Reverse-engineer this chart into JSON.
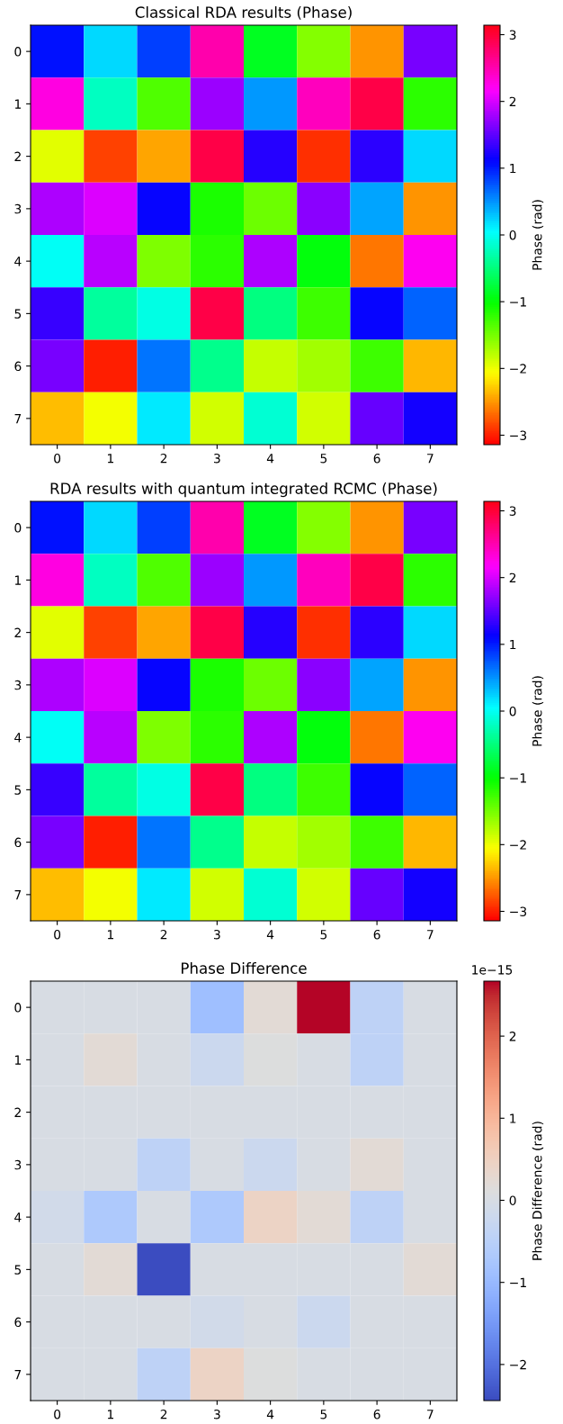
{
  "chart_data": [
    {
      "type": "heatmap",
      "title": "Classical RDA results (Phase)",
      "clabel": "Phase (rad)",
      "categories": [
        "0",
        "1",
        "2",
        "3",
        "4",
        "5",
        "6",
        "7"
      ],
      "y_categories": [
        "0",
        "1",
        "2",
        "3",
        "4",
        "5",
        "6",
        "7"
      ],
      "cells": [
        [
          1.05,
          0.21,
          0.84,
          2.51,
          -0.87,
          -1.57,
          -2.51,
          1.61
        ],
        [
          2.3,
          -0.21,
          -1.33,
          1.75,
          0.49,
          2.44,
          2.93,
          -1.19
        ],
        [
          -1.95,
          -2.86,
          -2.44,
          2.93,
          1.26,
          -2.93,
          1.3,
          0.21
        ],
        [
          1.82,
          2.02,
          1.12,
          -1.12,
          -1.47,
          1.68,
          0.42,
          -2.51
        ],
        [
          0.0,
          1.88,
          -1.54,
          -1.19,
          1.82,
          -0.98,
          -2.65,
          2.23
        ],
        [
          1.33,
          -0.35,
          -0.07,
          2.93,
          -0.49,
          -1.26,
          1.12,
          0.7
        ],
        [
          1.61,
          -3.0,
          0.63,
          -0.42,
          -1.82,
          -1.68,
          -1.26,
          -2.37
        ],
        [
          -2.34,
          -2.02,
          0.14,
          -1.88,
          -0.14,
          -1.88,
          1.54,
          1.19
        ]
      ],
      "clim": [
        -3.1416,
        3.1416
      ],
      "cticks": [
        -3,
        -2,
        -1,
        0,
        1,
        2,
        3
      ],
      "grid": false
    },
    {
      "type": "heatmap",
      "title": "RDA results with quantum integrated RCMC (Phase)",
      "clabel": "Phase (rad)",
      "categories": [
        "0",
        "1",
        "2",
        "3",
        "4",
        "5",
        "6",
        "7"
      ],
      "y_categories": [
        "0",
        "1",
        "2",
        "3",
        "4",
        "5",
        "6",
        "7"
      ],
      "cells": [
        [
          1.05,
          0.21,
          0.84,
          2.51,
          -0.87,
          -1.57,
          -2.51,
          1.61
        ],
        [
          2.3,
          -0.21,
          -1.33,
          1.75,
          0.49,
          2.44,
          2.93,
          -1.19
        ],
        [
          -1.95,
          -2.86,
          -2.44,
          2.93,
          1.26,
          -2.93,
          1.3,
          0.21
        ],
        [
          1.82,
          2.02,
          1.12,
          -1.12,
          -1.47,
          1.68,
          0.42,
          -2.51
        ],
        [
          0.0,
          1.88,
          -1.54,
          -1.19,
          1.82,
          -0.98,
          -2.65,
          2.23
        ],
        [
          1.33,
          -0.35,
          -0.07,
          2.93,
          -0.49,
          -1.26,
          1.12,
          0.7
        ],
        [
          1.61,
          -3.0,
          0.63,
          -0.42,
          -1.82,
          -1.68,
          -1.26,
          -2.37
        ],
        [
          -2.34,
          -2.02,
          0.14,
          -1.88,
          -0.14,
          -1.88,
          1.54,
          1.19
        ]
      ],
      "clim": [
        -3.1416,
        3.1416
      ],
      "cticks": [
        -3,
        -2,
        -1,
        0,
        1,
        2,
        3
      ],
      "grid": false
    },
    {
      "type": "heatmap",
      "title": "Phase Difference",
      "clabel": "Phase Difference (rad)",
      "categories": [
        "0",
        "1",
        "2",
        "3",
        "4",
        "5",
        "6",
        "7"
      ],
      "y_categories": [
        "0",
        "1",
        "2",
        "3",
        "4",
        "5",
        "6",
        "7"
      ],
      "cells": [
        [
          0,
          0,
          0,
          -0.89,
          0.22,
          2.66,
          -0.44,
          0
        ],
        [
          0,
          0.22,
          0,
          -0.22,
          0.11,
          0,
          -0.44,
          0
        ],
        [
          0,
          0,
          0,
          0,
          0,
          0,
          0,
          0
        ],
        [
          0,
          0,
          -0.44,
          0,
          -0.22,
          0,
          0.22,
          0
        ],
        [
          -0.11,
          -0.67,
          0,
          -0.67,
          0.44,
          0.22,
          -0.44,
          0
        ],
        [
          0,
          0.22,
          -2.44,
          0,
          0,
          0,
          0,
          0.22
        ],
        [
          0,
          0,
          0,
          -0.11,
          0,
          -0.22,
          0,
          0
        ],
        [
          0,
          0,
          -0.44,
          0.44,
          0.1,
          0,
          0,
          0
        ]
      ],
      "clim": [
        -2.44,
        2.67
      ],
      "cticks": [
        {
          "value": -2,
          "label": "−2"
        },
        {
          "value": -1,
          "label": "−1"
        },
        0,
        1,
        2
      ],
      "annotations": [
        "1e−15"
      ],
      "grid": false
    }
  ]
}
